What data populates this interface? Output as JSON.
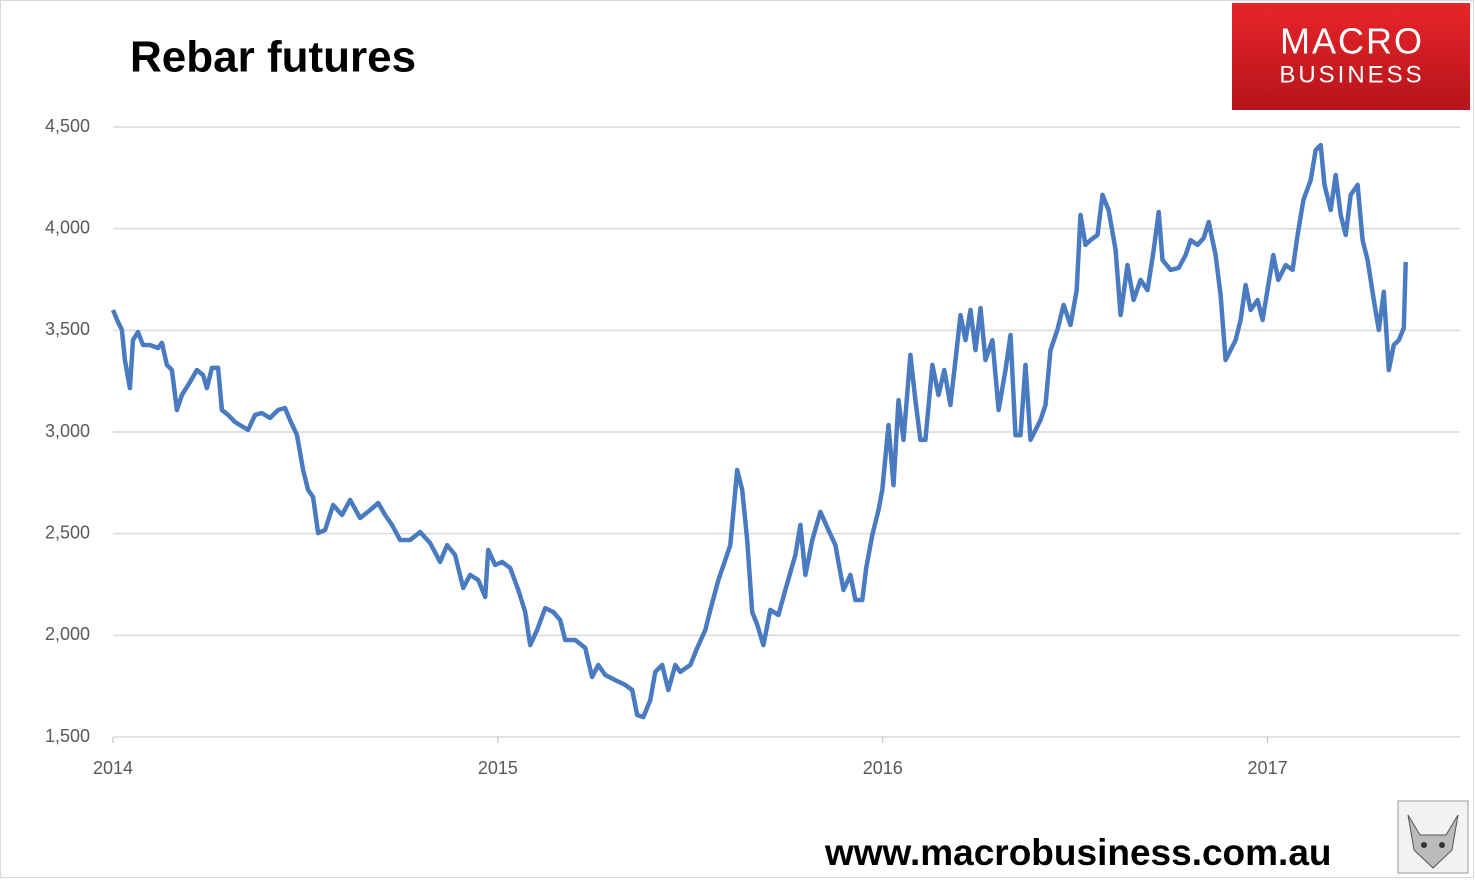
{
  "chart_data": {
    "type": "line",
    "title": "Rebar futures",
    "color": "#4a7bc0",
    "x": [
      2014.0,
      2014.013,
      2014.023,
      2014.031,
      2014.044,
      2014.052,
      2014.065,
      2014.078,
      2014.096,
      2014.117,
      2014.127,
      2014.14,
      2014.153,
      2014.166,
      2014.179,
      2014.2,
      2014.218,
      2014.234,
      2014.244,
      2014.257,
      2014.273,
      2014.283,
      2014.299,
      2014.317,
      2014.351,
      2014.369,
      2014.387,
      2014.408,
      2014.429,
      2014.447,
      2014.46,
      2014.478,
      2014.494,
      2014.507,
      2014.52,
      2014.533,
      2014.551,
      2014.572,
      2014.595,
      2014.616,
      2014.642,
      2014.668,
      2014.689,
      2014.707,
      2014.725,
      2014.746,
      2014.772,
      2014.798,
      2014.824,
      2014.85,
      2014.868,
      2014.889,
      2014.91,
      2014.928,
      2014.949,
      2014.967,
      2014.975,
      2014.993,
      2015.011,
      2015.032,
      2015.053,
      2015.071,
      2015.084,
      2015.102,
      2015.123,
      2015.144,
      2015.162,
      2015.175,
      2015.201,
      2015.227,
      2015.245,
      2015.261,
      2015.279,
      2015.305,
      2015.331,
      2015.349,
      2015.362,
      2015.378,
      2015.396,
      2015.409,
      2015.427,
      2015.443,
      2015.461,
      2015.474,
      2015.5,
      2015.518,
      2015.539,
      2015.552,
      2015.573,
      2015.591,
      2015.604,
      2015.622,
      2015.635,
      2015.648,
      2015.661,
      2015.674,
      2015.69,
      2015.708,
      2015.729,
      2015.747,
      2015.773,
      2015.786,
      2015.799,
      2015.817,
      2015.838,
      2015.859,
      2015.877,
      2015.898,
      2015.916,
      2015.929,
      2015.947,
      2015.957,
      2015.973,
      2015.989,
      2015.999,
      2016.015,
      2016.028,
      2016.041,
      2016.054,
      2016.072,
      2016.085,
      2016.098,
      2016.111,
      2016.129,
      2016.145,
      2016.16,
      2016.176,
      2016.189,
      2016.202,
      2016.215,
      2016.228,
      2016.241,
      2016.254,
      2016.267,
      2016.285,
      2016.301,
      2016.319,
      2016.332,
      2016.345,
      2016.358,
      2016.371,
      2016.384,
      2016.397,
      2016.41,
      2016.423,
      2016.436,
      2016.454,
      2016.47,
      2016.488,
      2016.504,
      2016.514,
      2016.527,
      2016.54,
      2016.558,
      2016.571,
      2016.587,
      2016.605,
      2016.618,
      2016.636,
      2016.652,
      2016.67,
      2016.688,
      2016.704,
      2016.717,
      2016.727,
      2016.748,
      2016.769,
      2016.787,
      2016.8,
      2016.818,
      2016.834,
      2016.847,
      2016.865,
      2016.878,
      2016.891,
      2016.904,
      2016.917,
      2016.93,
      2016.943,
      2016.956,
      2016.974,
      2016.987,
      2017.002,
      2017.015,
      2017.028,
      2017.047,
      2017.065,
      2017.078,
      2017.093,
      2017.112,
      2017.125,
      2017.138,
      2017.148,
      2017.164,
      2017.177,
      2017.19,
      2017.203,
      2017.216,
      2017.234,
      2017.247,
      2017.26,
      2017.276,
      2017.289,
      2017.302,
      2017.315,
      2017.328,
      2017.341,
      2017.354,
      2017.359
    ],
    "values": [
      3600,
      3541,
      3502,
      3354,
      3216,
      3452,
      3492,
      3428,
      3428,
      3413,
      3438,
      3330,
      3305,
      3108,
      3182,
      3246,
      3305,
      3280,
      3216,
      3315,
      3315,
      3108,
      3084,
      3049,
      3010,
      3084,
      3093,
      3069,
      3108,
      3118,
      3059,
      2985,
      2813,
      2715,
      2680,
      2503,
      2518,
      2641,
      2592,
      2666,
      2577,
      2616,
      2651,
      2592,
      2543,
      2469,
      2469,
      2508,
      2454,
      2361,
      2444,
      2395,
      2233,
      2297,
      2272,
      2189,
      2420,
      2346,
      2361,
      2331,
      2223,
      2115,
      1952,
      2026,
      2134,
      2115,
      2075,
      1977,
      1977,
      1938,
      1795,
      1854,
      1805,
      1780,
      1756,
      1731,
      1608,
      1598,
      1682,
      1820,
      1854,
      1731,
      1854,
      1820,
      1854,
      1938,
      2026,
      2125,
      2272,
      2371,
      2444,
      2813,
      2715,
      2469,
      2115,
      2051,
      1952,
      2125,
      2100,
      2223,
      2395,
      2543,
      2297,
      2469,
      2607,
      2518,
      2444,
      2223,
      2297,
      2174,
      2174,
      2331,
      2493,
      2616,
      2715,
      3034,
      2739,
      3157,
      2961,
      3379,
      3157,
      2961,
      2961,
      3330,
      3182,
      3305,
      3133,
      3354,
      3575,
      3452,
      3600,
      3403,
      3610,
      3354,
      3452,
      3108,
      3305,
      3477,
      2985,
      2985,
      3330,
      2961,
      3010,
      3059,
      3133,
      3403,
      3502,
      3625,
      3526,
      3698,
      4067,
      3920,
      3944,
      3969,
      4166,
      4092,
      3895,
      3575,
      3821,
      3649,
      3748,
      3698,
      3895,
      4082,
      3846,
      3797,
      3807,
      3870,
      3944,
      3920,
      3954,
      4033,
      3870,
      3674,
      3354,
      3403,
      3452,
      3551,
      3723,
      3600,
      3649,
      3551,
      3723,
      3870,
      3748,
      3821,
      3797,
      3969,
      4141,
      4239,
      4387,
      4411,
      4215,
      4092,
      4264,
      4067,
      3969,
      4166,
      4215,
      3944,
      3846,
      3649,
      3502,
      3689,
      3305,
      3428,
      3452,
      3511,
      3836
    ],
    "xlim": [
      2014,
      2017.5
    ],
    "xticks": [
      2014,
      2015,
      2016,
      2017
    ],
    "ylim": [
      1500,
      4500
    ],
    "yticks": [
      {
        "value": 1500,
        "label": "1,500"
      },
      {
        "value": 2000,
        "label": "2,000"
      },
      {
        "value": 2500,
        "label": "2,500"
      },
      {
        "value": 3000,
        "label": "3,000"
      },
      {
        "value": 3500,
        "label": "3,500"
      },
      {
        "value": 4000,
        "label": "4,000"
      },
      {
        "value": 4500,
        "label": "4,500"
      }
    ],
    "grid": true
  },
  "logo": {
    "line1": "MACRO",
    "line2": "BUSINESS"
  },
  "footer": "www.macrobusiness.com.au"
}
